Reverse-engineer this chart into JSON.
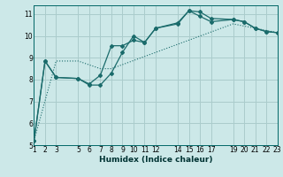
{
  "bg_color": "#cce8e8",
  "grid_color": "#aacccc",
  "line_color": "#1a6b6b",
  "xlabel": "Humidex (Indice chaleur)",
  "xlim": [
    1,
    23
  ],
  "ylim": [
    5,
    11.4
  ],
  "xticks": [
    1,
    2,
    3,
    5,
    6,
    7,
    8,
    9,
    10,
    11,
    12,
    14,
    15,
    16,
    17,
    19,
    20,
    21,
    22,
    23
  ],
  "yticks": [
    5,
    6,
    7,
    8,
    9,
    10,
    11
  ],
  "series1_x": [
    1,
    2,
    3,
    5,
    6,
    7,
    8,
    9,
    10,
    11,
    12,
    14,
    15,
    16,
    17,
    19,
    20,
    21,
    22,
    23
  ],
  "series1_y": [
    5.2,
    8.85,
    8.1,
    8.05,
    7.8,
    8.2,
    9.55,
    9.55,
    9.8,
    9.7,
    10.35,
    10.6,
    11.15,
    11.1,
    10.8,
    10.75,
    10.65,
    10.35,
    10.2,
    10.15
  ],
  "series2_x": [
    1,
    2,
    3,
    5,
    6,
    7,
    8,
    9,
    10,
    11,
    12,
    14,
    15,
    16,
    17,
    19,
    20,
    21,
    22,
    23
  ],
  "series2_y": [
    5.2,
    8.85,
    8.1,
    8.05,
    7.75,
    7.75,
    8.3,
    9.25,
    10.0,
    9.7,
    10.35,
    10.55,
    11.15,
    10.9,
    10.65,
    10.75,
    10.65,
    10.35,
    10.2,
    10.15
  ],
  "series3_x": [
    1,
    3,
    5,
    7,
    8,
    19,
    23
  ],
  "series3_y": [
    5.2,
    8.85,
    8.85,
    8.5,
    8.5,
    10.55,
    10.15
  ]
}
